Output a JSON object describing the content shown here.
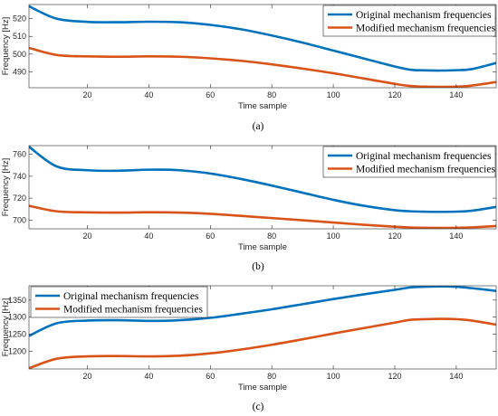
{
  "figure": {
    "panels": [
      {
        "caption": "(a)"
      },
      {
        "caption": "(b)"
      },
      {
        "caption": "(c)"
      }
    ]
  },
  "chart_data": [
    {
      "type": "line",
      "xlabel": "Time sample",
      "ylabel": "Frequency [Hz]",
      "xlim": [
        1,
        153
      ],
      "ylim": [
        481,
        528
      ],
      "xticks": [
        20,
        40,
        60,
        80,
        100,
        120,
        140
      ],
      "yticks": [
        490,
        500,
        510,
        520
      ],
      "grid": false,
      "legend_position": "top-right",
      "x": [
        1,
        10,
        20,
        30,
        40,
        50,
        60,
        70,
        80,
        90,
        100,
        110,
        120,
        125,
        130,
        135,
        140,
        145,
        153
      ],
      "series": [
        {
          "name": "Original mechanism frequencies",
          "color": "#0072BD",
          "values": [
            527,
            520,
            518.2,
            518,
            518.3,
            518,
            516.5,
            514,
            510.5,
            506.5,
            502,
            497.5,
            493,
            491.2,
            490.8,
            490.7,
            490.9,
            491.5,
            495
          ]
        },
        {
          "name": "Modified mechanism frequencies",
          "color": "#D95319",
          "values": [
            503.5,
            499.5,
            498.7,
            498.5,
            498.7,
            498.5,
            497.6,
            496.2,
            494.2,
            491.8,
            489.2,
            486.2,
            483.2,
            482,
            481.6,
            481.5,
            481.6,
            482.2,
            484.2
          ]
        }
      ]
    },
    {
      "type": "line",
      "xlabel": "Time sample",
      "ylabel": "Frequency [Hz]",
      "xlim": [
        1,
        153
      ],
      "ylim": [
        692,
        768
      ],
      "xticks": [
        20,
        40,
        60,
        80,
        100,
        120,
        140
      ],
      "yticks": [
        700,
        720,
        740,
        760
      ],
      "grid": false,
      "legend_position": "top-right",
      "x": [
        1,
        10,
        20,
        30,
        40,
        50,
        60,
        70,
        80,
        90,
        100,
        110,
        120,
        125,
        130,
        135,
        140,
        145,
        153
      ],
      "series": [
        {
          "name": "Original mechanism frequencies",
          "color": "#0072BD",
          "values": [
            767,
            749,
            745.5,
            745,
            746,
            745.5,
            742.5,
            737.5,
            731.5,
            725,
            718.5,
            713,
            709,
            708,
            707.6,
            707.5,
            707.7,
            708.5,
            712
          ]
        },
        {
          "name": "Modified mechanism frequencies",
          "color": "#D95319",
          "values": [
            713,
            708,
            707,
            706.8,
            707.1,
            706.8,
            705.7,
            703.8,
            701.8,
            699.8,
            697.7,
            695.7,
            693.9,
            693.2,
            692.9,
            692.8,
            692.9,
            693.3,
            694.5
          ]
        }
      ]
    },
    {
      "type": "line",
      "xlabel": "Time sample",
      "ylabel": "Frequency [Hz]",
      "xlim": [
        1,
        153
      ],
      "ylim": [
        1148,
        1392
      ],
      "xticks": [
        20,
        40,
        60,
        80,
        100,
        120,
        140
      ],
      "yticks": [
        1200,
        1250,
        1300,
        1350
      ],
      "grid": false,
      "legend_position": "top-left",
      "x": [
        1,
        10,
        20,
        30,
        40,
        50,
        60,
        70,
        80,
        90,
        100,
        110,
        120,
        125,
        130,
        135,
        140,
        145,
        153
      ],
      "series": [
        {
          "name": "Original mechanism frequencies",
          "color": "#0072BD",
          "values": [
            1245,
            1282,
            1290,
            1291,
            1289,
            1291,
            1298,
            1310,
            1323,
            1338,
            1353,
            1367,
            1380,
            1387,
            1389,
            1390,
            1389,
            1385,
            1377
          ]
        },
        {
          "name": "Modified mechanism frequencies",
          "color": "#D95319",
          "values": [
            1150,
            1178,
            1185,
            1186,
            1185,
            1187,
            1194,
            1205,
            1219,
            1235,
            1252,
            1268,
            1284,
            1292,
            1294,
            1295,
            1294,
            1290,
            1278
          ]
        }
      ]
    }
  ]
}
